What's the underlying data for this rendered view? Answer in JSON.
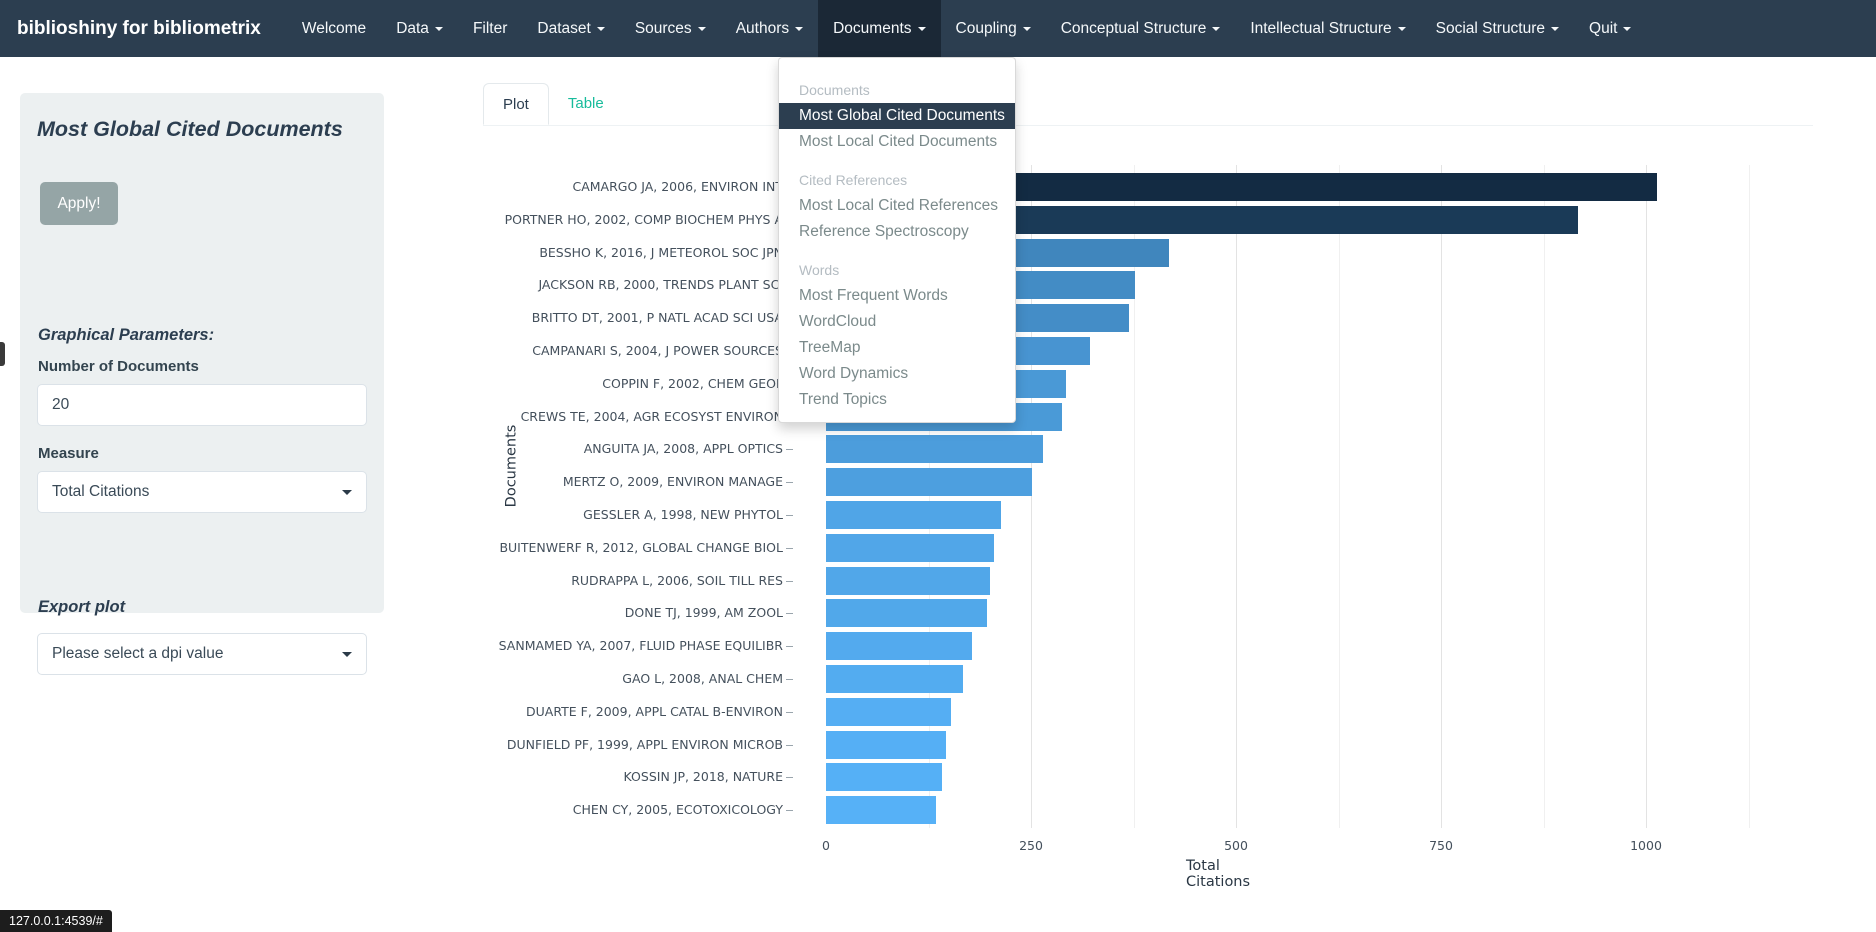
{
  "theme": {
    "navbar_bg": "#2c3e50",
    "navbar_active_bg": "#1b2836",
    "accent": "#18bc9c",
    "panel_bg": "#ecf0f1",
    "button_bg": "#95a5a6",
    "dark_text": "#2c3e50",
    "menu_item_color": "#7b8a8b",
    "menu_header_color": "#b4bcc2",
    "grid_major": "#e3e3e3",
    "grid_minor": "#f0f0f0"
  },
  "navbar": {
    "brand": "biblioshiny for bibliometrix",
    "items": [
      {
        "label": "Welcome",
        "dropdown": false,
        "active": false
      },
      {
        "label": "Data",
        "dropdown": true,
        "active": false
      },
      {
        "label": "Filter",
        "dropdown": false,
        "active": false
      },
      {
        "label": "Dataset",
        "dropdown": true,
        "active": false
      },
      {
        "label": "Sources",
        "dropdown": true,
        "active": false
      },
      {
        "label": "Authors",
        "dropdown": true,
        "active": false
      },
      {
        "label": "Documents",
        "dropdown": true,
        "active": true
      },
      {
        "label": "Coupling",
        "dropdown": true,
        "active": false
      },
      {
        "label": "Conceptual Structure",
        "dropdown": true,
        "active": false
      },
      {
        "label": "Intellectual Structure",
        "dropdown": true,
        "active": false
      },
      {
        "label": "Social Structure",
        "dropdown": true,
        "active": false
      },
      {
        "label": "Quit",
        "dropdown": true,
        "active": false
      }
    ]
  },
  "documents_menu": {
    "items": [
      {
        "type": "header",
        "label": "Documents"
      },
      {
        "type": "item",
        "label": "Most Global Cited Documents",
        "active": true
      },
      {
        "type": "item",
        "label": "Most Local Cited Documents",
        "active": false
      },
      {
        "type": "header",
        "label": "Cited References"
      },
      {
        "type": "item",
        "label": "Most Local Cited References",
        "active": false
      },
      {
        "type": "item",
        "label": "Reference Spectroscopy",
        "active": false
      },
      {
        "type": "header",
        "label": "Words"
      },
      {
        "type": "item",
        "label": "Most Frequent Words",
        "active": false
      },
      {
        "type": "item",
        "label": "WordCloud",
        "active": false
      },
      {
        "type": "item",
        "label": "TreeMap",
        "active": false
      },
      {
        "type": "item",
        "label": "Word Dynamics",
        "active": false
      },
      {
        "type": "item",
        "label": "Trend Topics",
        "active": false
      }
    ]
  },
  "sidebar": {
    "title": "Most Global Cited Documents",
    "apply_label": "Apply!",
    "section_graphical": "Graphical Parameters:",
    "number_label": "Number of Documents",
    "number_value": "20",
    "measure_label": "Measure",
    "measure_value": "Total Citations",
    "section_export": "Export plot",
    "export_value": "Please select a dpi value"
  },
  "tabs": [
    {
      "label": "Plot",
      "active": true
    },
    {
      "label": "Table",
      "active": false
    }
  ],
  "status_bar": "127.0.0.1:4539/#",
  "chart_data": {
    "type": "bar",
    "orientation": "horizontal",
    "xlabel": "Total Citations",
    "ylabel": "Documents",
    "xlim": [
      0,
      1125
    ],
    "x_ticks": [
      0,
      250,
      500,
      750,
      1000
    ],
    "grid": true,
    "legend": false,
    "categories": [
      "CAMARGO JA, 2006, ENVIRON INT",
      "PORTNER HO, 2002, COMP BIOCHEM PHYS A",
      "BESSHO K, 2016, J METEOROL SOC JPN",
      "JACKSON RB, 2000, TRENDS PLANT SCI",
      "BRITTO DT, 2001, P NATL ACAD SCI USA",
      "CAMPANARI S, 2004, J POWER SOURCES",
      "COPPIN F, 2002, CHEM GEOL",
      "CREWS TE, 2004, AGR ECOSYST ENVIRON",
      "ANGUITA JA, 2008, APPL OPTICS",
      "MERTZ O, 2009, ENVIRON MANAGE",
      "GESSLER A, 1998, NEW PHYTOL",
      "BUITENWERF R, 2012, GLOBAL CHANGE BIOL",
      "RUDRAPPA L, 2006, SOIL TILL RES",
      "DONE TJ, 1999, AM ZOOL",
      "SANMAMED YA, 2007, FLUID PHASE EQUILIBR",
      "GAO L, 2008, ANAL CHEM",
      "DUARTE F, 2009, APPL CATAL B-ENVIRON",
      "DUNFIELD PF, 1999, APPL ENVIRON MICROB",
      "KOSSIN JP, 2018, NATURE",
      "CHEN CY, 2005, ECOTOXICOLOGY"
    ],
    "values": [
      1013,
      917,
      418,
      377,
      370,
      322,
      293,
      288,
      265,
      251,
      213,
      205,
      200,
      196,
      178,
      167,
      153,
      146,
      141,
      134
    ],
    "color_high": "#132B43",
    "color_low": "#56B1F7"
  }
}
